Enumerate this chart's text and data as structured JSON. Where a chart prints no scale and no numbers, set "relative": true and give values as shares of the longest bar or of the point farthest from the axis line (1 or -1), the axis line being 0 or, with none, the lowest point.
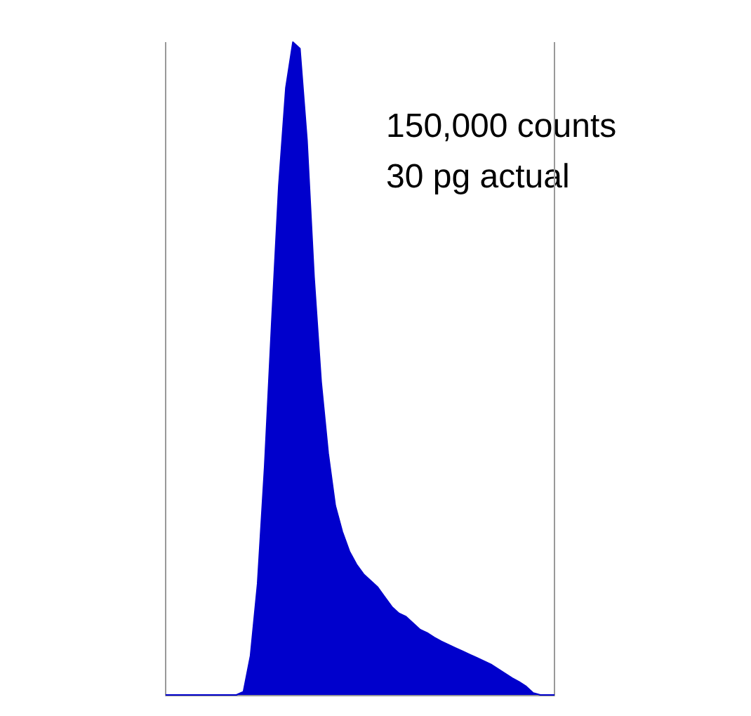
{
  "chart_data": {
    "type": "area",
    "relative": true,
    "color": "#0000cc",
    "categories": [
      null,
      null,
      null,
      null,
      null,
      null,
      null,
      null,
      null,
      null,
      null,
      null,
      null,
      null,
      null,
      null,
      null,
      null,
      null,
      null,
      null,
      null,
      null,
      null,
      null,
      null,
      null,
      null,
      null,
      null,
      null,
      null,
      null,
      null,
      null,
      null,
      null,
      null,
      null,
      null,
      null,
      null,
      null,
      null,
      null,
      null,
      null,
      null,
      null,
      null,
      null,
      null,
      null,
      null,
      null,
      null
    ],
    "values": [
      0,
      0,
      0,
      0,
      0,
      0,
      0,
      0,
      0,
      0,
      0,
      0.005,
      0.06,
      0.17,
      0.35,
      0.57,
      0.78,
      0.93,
      1,
      0.99,
      0.85,
      0.64,
      0.48,
      0.37,
      0.29,
      0.25,
      0.22,
      0.2,
      0.185,
      0.175,
      0.165,
      0.15,
      0.135,
      0.125,
      0.12,
      0.11,
      0.1,
      0.095,
      0.088,
      0.082,
      0.077,
      0.072,
      0.067,
      0.062,
      0.057,
      0.052,
      0.047,
      0.04,
      0.033,
      0.026,
      0.02,
      0.013,
      0.003,
      0,
      0,
      0
    ],
    "annotations": [
      "150,000 counts",
      "30 pg actual"
    ],
    "grid": false,
    "marker": "none"
  }
}
